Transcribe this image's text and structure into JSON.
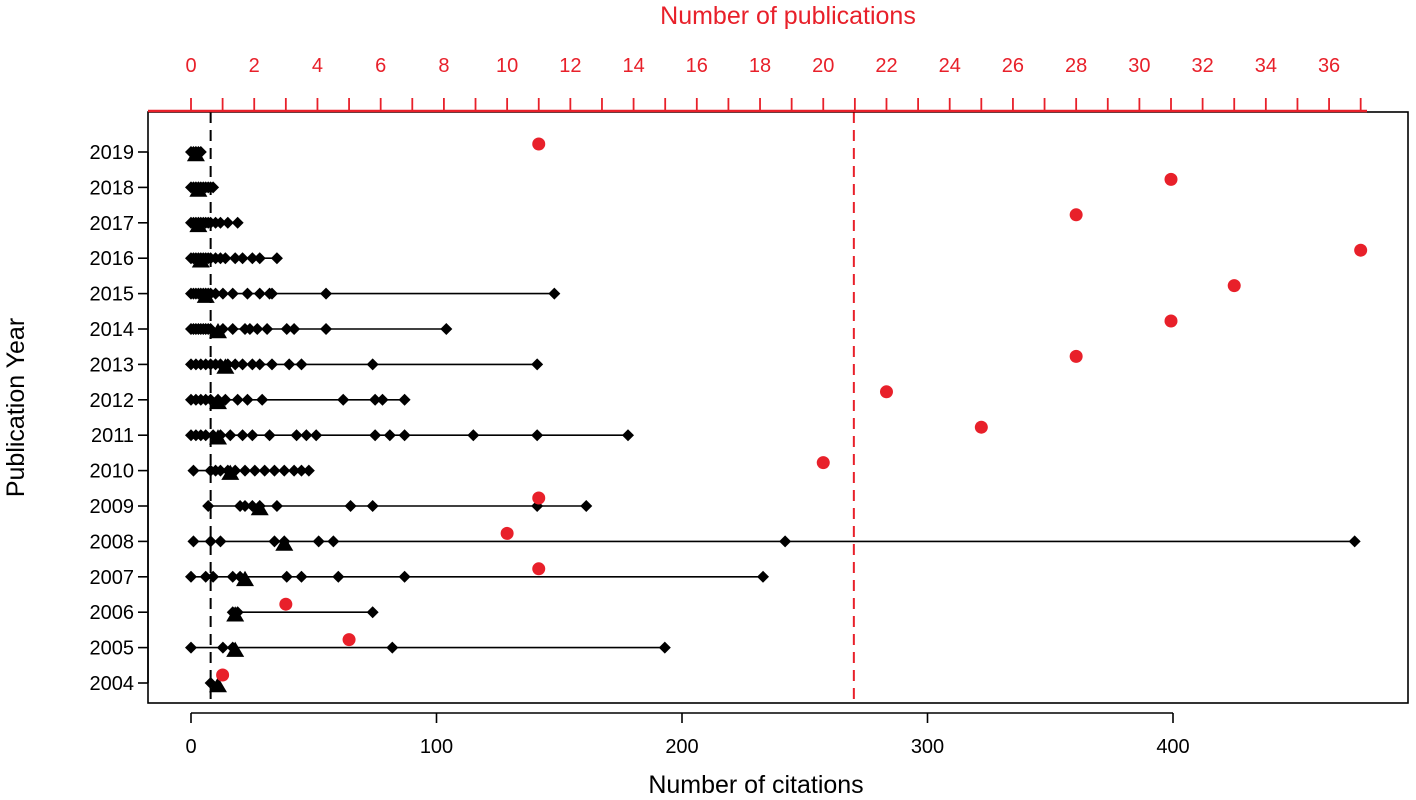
{
  "chart_data": {
    "type": "scatter",
    "title": "",
    "xlabel": "Number of citations",
    "ylabel": "Publication Year",
    "x2label": "Number of publications",
    "xlim": [
      0,
      475
    ],
    "x2lim": [
      0,
      37.2
    ],
    "ylim": [
      2004,
      2019
    ],
    "x_ticks": [
      0,
      100,
      200,
      300,
      400
    ],
    "x2_ticks": [
      0,
      2,
      4,
      6,
      8,
      10,
      12,
      14,
      16,
      18,
      20,
      22,
      24,
      26,
      28,
      30,
      32,
      34,
      36
    ],
    "y_ticks": [
      2004,
      2005,
      2006,
      2007,
      2008,
      2009,
      2010,
      2011,
      2012,
      2013,
      2014,
      2015,
      2016,
      2017,
      2018,
      2019
    ],
    "grid": false,
    "reference_lines": [
      {
        "axis": "x",
        "value": 8,
        "color": "#000000",
        "style": "dashed"
      },
      {
        "axis": "x",
        "value": 270,
        "color": "#e8202a",
        "style": "dashed"
      }
    ],
    "colors": {
      "citations": "#000000",
      "publications": "#e8202a",
      "median": "#000000"
    },
    "series": [
      {
        "marker": "diamond",
        "axis": "citations",
        "points": [
          {
            "year": 2004,
            "x": [
              8
            ]
          },
          {
            "year": 2005,
            "x": [
              0,
              13,
              17,
              82,
              193
            ]
          },
          {
            "year": 2006,
            "x": [
              17,
              19,
              74
            ]
          },
          {
            "year": 2007,
            "x": [
              0,
              6,
              9,
              17,
              20,
              39,
              45,
              60,
              87,
              233
            ]
          },
          {
            "year": 2008,
            "x": [
              1,
              8,
              12,
              34,
              38,
              52,
              58,
              242,
              474
            ]
          },
          {
            "year": 2009,
            "x": [
              7,
              20,
              22,
              25,
              28,
              35,
              65,
              74,
              141,
              161
            ]
          },
          {
            "year": 2010,
            "x": [
              1,
              8,
              10,
              12,
              15,
              18,
              22,
              26,
              30,
              34,
              38,
              42,
              45,
              48
            ]
          },
          {
            "year": 2011,
            "x": [
              0,
              2,
              4,
              6,
              9,
              12,
              16,
              21,
              25,
              32,
              43,
              47,
              51,
              75,
              81,
              87,
              115,
              141,
              178
            ]
          },
          {
            "year": 2012,
            "x": [
              0,
              2,
              4,
              6,
              8,
              11,
              14,
              19,
              23,
              29,
              62,
              75,
              78,
              87
            ]
          },
          {
            "year": 2013,
            "x": [
              0,
              2,
              4,
              6,
              8,
              10,
              12,
              15,
              18,
              21,
              25,
              28,
              33,
              40,
              45,
              74,
              141
            ]
          },
          {
            "year": 2014,
            "x": [
              0,
              1,
              2,
              3,
              4,
              5,
              6,
              7,
              8,
              13,
              17,
              22,
              24,
              27,
              31,
              39,
              42,
              55,
              104
            ]
          },
          {
            "year": 2015,
            "x": [
              0,
              1,
              2,
              3,
              4,
              5,
              6,
              7,
              8,
              10,
              13,
              17,
              23,
              28,
              32,
              33,
              55,
              148
            ]
          },
          {
            "year": 2016,
            "x": [
              0,
              1,
              2,
              3,
              4,
              5,
              6,
              7,
              8,
              10,
              12,
              14,
              18,
              21,
              25,
              28,
              35
            ]
          },
          {
            "year": 2017,
            "x": [
              0,
              1,
              2,
              3,
              4,
              5,
              6,
              7,
              8,
              10,
              12,
              15,
              19
            ]
          },
          {
            "year": 2018,
            "x": [
              0,
              1,
              2,
              3,
              4,
              5,
              6,
              7,
              8,
              9
            ]
          },
          {
            "year": 2019,
            "x": [
              0,
              1,
              2,
              3,
              4
            ]
          }
        ]
      },
      {
        "marker": "triangle",
        "axis": "citations",
        "points": [
          {
            "year": 2004,
            "x": 11
          },
          {
            "year": 2005,
            "x": 18
          },
          {
            "year": 2006,
            "x": 18
          },
          {
            "year": 2007,
            "x": 22
          },
          {
            "year": 2008,
            "x": 38
          },
          {
            "year": 2009,
            "x": 28
          },
          {
            "year": 2010,
            "x": 16
          },
          {
            "year": 2011,
            "x": 11
          },
          {
            "year": 2012,
            "x": 11
          },
          {
            "year": 2013,
            "x": 14
          },
          {
            "year": 2014,
            "x": 11
          },
          {
            "year": 2015,
            "x": 6
          },
          {
            "year": 2016,
            "x": 4
          },
          {
            "year": 2017,
            "x": 3
          },
          {
            "year": 2018,
            "x": 3
          },
          {
            "year": 2019,
            "x": 2
          }
        ]
      },
      {
        "marker": "circle",
        "axis": "publications",
        "points": [
          {
            "year": 2004,
            "x": 1
          },
          {
            "year": 2005,
            "x": 5
          },
          {
            "year": 2006,
            "x": 3
          },
          {
            "year": 2007,
            "x": 11
          },
          {
            "year": 2008,
            "x": 10
          },
          {
            "year": 2009,
            "x": 11
          },
          {
            "year": 2010,
            "x": 20
          },
          {
            "year": 2011,
            "x": 25
          },
          {
            "year": 2012,
            "x": 22
          },
          {
            "year": 2013,
            "x": 28
          },
          {
            "year": 2014,
            "x": 31
          },
          {
            "year": 2015,
            "x": 33
          },
          {
            "year": 2016,
            "x": 37
          },
          {
            "year": 2017,
            "x": 28
          },
          {
            "year": 2018,
            "x": 31
          },
          {
            "year": 2019,
            "x": 11
          }
        ]
      }
    ]
  }
}
